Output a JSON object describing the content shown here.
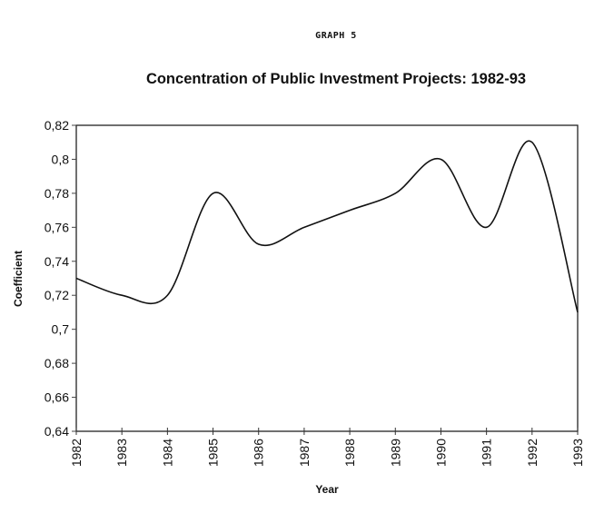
{
  "header": {
    "graph_label": "GRAPH 5"
  },
  "chart_data": {
    "type": "line",
    "title": "Concentration of Public Investment Projects: 1982-93",
    "xlabel": "Year",
    "ylabel": "Coefficient",
    "x": [
      1982,
      1983,
      1984,
      1985,
      1986,
      1987,
      1988,
      1989,
      1990,
      1991,
      1992,
      1993
    ],
    "series": [
      {
        "name": "Coefficient",
        "values": [
          0.73,
          0.72,
          0.72,
          0.78,
          0.75,
          0.76,
          0.77,
          0.78,
          0.8,
          0.76,
          0.81,
          0.71
        ]
      }
    ],
    "xlim": [
      1982,
      1993
    ],
    "ylim": [
      0.64,
      0.82
    ],
    "x_tick_labels": [
      "1982",
      "1983",
      "1984",
      "1985",
      "1986",
      "1987",
      "1988",
      "1989",
      "1990",
      "1991",
      "1992",
      "1993"
    ],
    "y_ticks": [
      0.64,
      0.66,
      0.68,
      0.7,
      0.72,
      0.74,
      0.76,
      0.78,
      0.8,
      0.82
    ],
    "y_tick_labels": [
      "0,64",
      "0,66",
      "0,68",
      "0,7",
      "0,72",
      "0,74",
      "0,76",
      "0,78",
      "0,8",
      "0,82"
    ],
    "smoothed": true,
    "grid": false,
    "legend": "none",
    "line_color": "#111111"
  }
}
